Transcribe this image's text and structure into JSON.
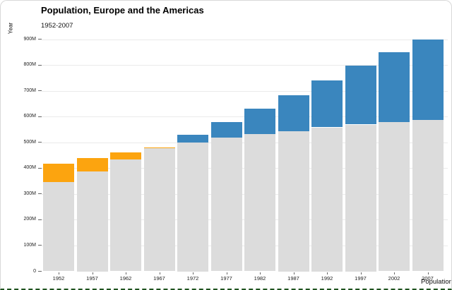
{
  "chart": {
    "title": "Population, Europe and the Americas",
    "subtitle": "1952-2007",
    "y_axis_title": "Year",
    "x_axis_title": "Population"
  },
  "colors": {
    "base_bar": "#dcdcdc",
    "europe_accent": "#fca40f",
    "americas_accent": "#3a86be",
    "gridline": "#eaeaea",
    "tick_text": "#222222",
    "border_green": "#1e521e"
  },
  "chart_data": {
    "type": "bar",
    "variant": "overlaid",
    "title": "Population, Europe and the Americas",
    "subtitle": "1952-2007",
    "y_axis_label_shown": "Year",
    "x_axis_label_shown": "Population",
    "unit": "millions",
    "categories": [
      "1952",
      "1957",
      "1962",
      "1967",
      "1972",
      "1977",
      "1982",
      "1987",
      "1992",
      "1997",
      "2002",
      "2007"
    ],
    "series": [
      {
        "name": "Europe",
        "color": "#fca40f",
        "values": [
          418.1,
          437.9,
          460.4,
          481.2,
          500.6,
          517.2,
          531.3,
          543.1,
          558.1,
          568.9,
          578.2,
          586.1
        ]
      },
      {
        "name": "Americas",
        "color": "#3a86be",
        "values": [
          345.2,
          387.0,
          433.3,
          480.7,
          529.4,
          578.1,
          630.3,
          682.8,
          739.3,
          796.9,
          849.8,
          898.9
        ]
      }
    ],
    "overlap_base_color": "#dcdcdc",
    "note": "gray bar = smaller of the two series; colored cap = larger series (orange when Europe leads, blue when Americas leads)",
    "ylim": [
      0,
      900
    ],
    "ytick_step": 100,
    "ytick_labels": [
      "0",
      "100M",
      "200M",
      "300M",
      "400M",
      "500M",
      "600M",
      "700M",
      "800M",
      "900M"
    ],
    "grid": true,
    "legend": "none"
  }
}
